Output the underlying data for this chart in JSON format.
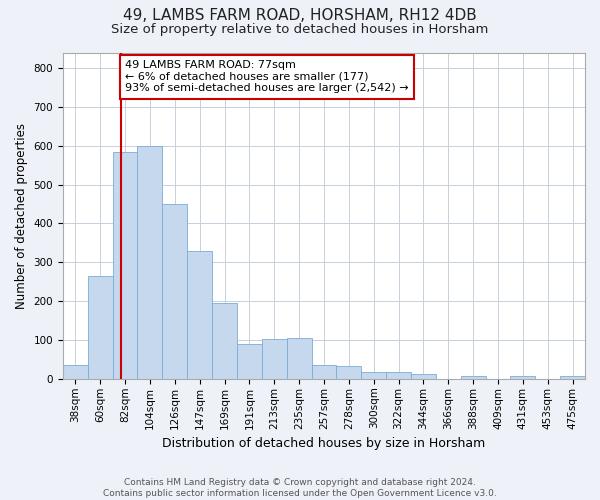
{
  "title": "49, LAMBS FARM ROAD, HORSHAM, RH12 4DB",
  "subtitle": "Size of property relative to detached houses in Horsham",
  "xlabel": "Distribution of detached houses by size in Horsham",
  "ylabel": "Number of detached properties",
  "footer_line1": "Contains HM Land Registry data © Crown copyright and database right 2024.",
  "footer_line2": "Contains public sector information licensed under the Open Government Licence v3.0.",
  "categories": [
    "38sqm",
    "60sqm",
    "82sqm",
    "104sqm",
    "126sqm",
    "147sqm",
    "169sqm",
    "191sqm",
    "213sqm",
    "235sqm",
    "257sqm",
    "278sqm",
    "300sqm",
    "322sqm",
    "344sqm",
    "366sqm",
    "388sqm",
    "409sqm",
    "431sqm",
    "453sqm",
    "475sqm"
  ],
  "values": [
    35,
    265,
    585,
    600,
    450,
    330,
    195,
    90,
    102,
    105,
    37,
    33,
    18,
    18,
    12,
    0,
    7,
    0,
    8,
    0,
    8
  ],
  "bar_color": "#c5d8ed",
  "bar_edge_color": "#7aadd4",
  "vline_color": "#cc0000",
  "annotation_text": "49 LAMBS FARM ROAD: 77sqm\n← 6% of detached houses are smaller (177)\n93% of semi-detached houses are larger (2,542) →",
  "annotation_box_color": "#cc0000",
  "ylim": [
    0,
    840
  ],
  "yticks": [
    0,
    100,
    200,
    300,
    400,
    500,
    600,
    700,
    800
  ],
  "bg_color": "#eef2f8",
  "plot_bg_color": "#ffffff",
  "grid_color": "#c8d0dc",
  "title_fontsize": 11,
  "subtitle_fontsize": 9.5,
  "xlabel_fontsize": 9,
  "ylabel_fontsize": 8.5,
  "tick_fontsize": 7.5,
  "annotation_fontsize": 8,
  "footer_fontsize": 6.5
}
